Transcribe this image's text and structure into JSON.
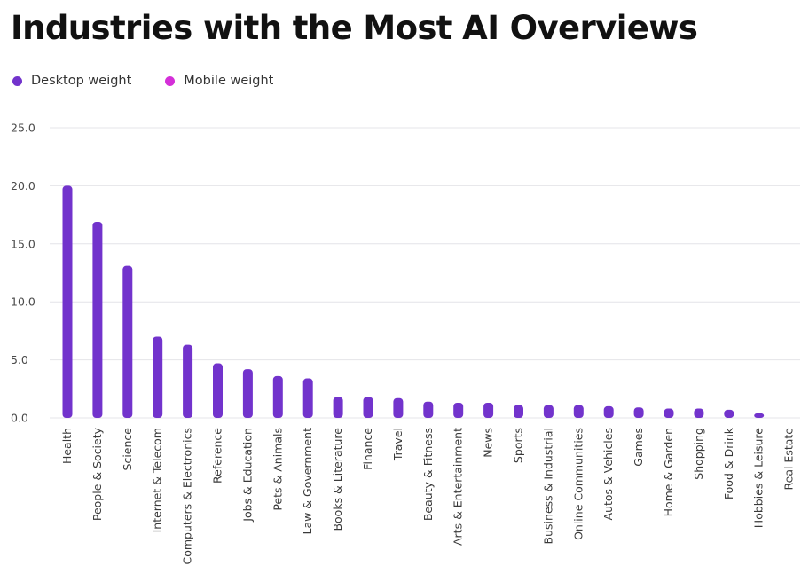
{
  "colors": {
    "desktop": "#7233cc",
    "mobile": "#d42fd8",
    "grid": "#e4e4e8"
  },
  "chart_data": {
    "type": "bar",
    "title": "Industries with the Most AI Overviews",
    "xlabel": "",
    "ylabel": "",
    "ylim": [
      0,
      25
    ],
    "yticks": [
      "25.0",
      "20.0",
      "15.0",
      "10.0",
      "5.0",
      "0.0"
    ],
    "ytick_values": [
      25,
      20,
      15,
      10,
      5,
      0
    ],
    "grid": true,
    "legend_position": "top-left",
    "legend": [
      {
        "label": "Desktop weight",
        "color": "#7233cc"
      },
      {
        "label": "Mobile weight",
        "color": "#d42fd8"
      }
    ],
    "categories": [
      "Health",
      "People & Society",
      "Science",
      "Internet & Telecom",
      "Computers & Electronics",
      "Reference",
      "Jobs & Education",
      "Pets & Animals",
      "Law & Government",
      "Books & Literature",
      "Finance",
      "Travel",
      "Beauty & Fitness",
      "Arts & Entertainment",
      "News",
      "Sports",
      "Business & Industrial",
      "Online Communities",
      "Autos & Vehicles",
      "Games",
      "Home & Garden",
      "Shopping",
      "Food & Drink",
      "Hobbies & Leisure",
      "Real Estate"
    ],
    "series": [
      {
        "name": "Desktop weight",
        "values": [
          20.0,
          16.9,
          13.1,
          7.0,
          6.3,
          4.7,
          4.2,
          3.6,
          3.4,
          1.8,
          1.8,
          1.7,
          1.4,
          1.3,
          1.3,
          1.1,
          1.1,
          1.1,
          1.0,
          0.9,
          0.8,
          0.8,
          0.7,
          0.4,
          0.0
        ]
      }
    ]
  }
}
